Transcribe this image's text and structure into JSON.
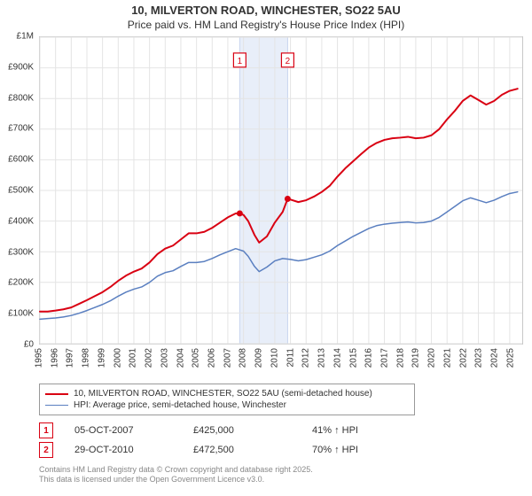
{
  "title_line1": "10, MILVERTON ROAD, WINCHESTER, SO22 5AU",
  "title_line2": "Price paid vs. HM Land Registry's House Price Index (HPI)",
  "chart": {
    "type": "line",
    "background_color": "#ffffff",
    "plot_border_color": "#c8c8c8",
    "grid_color": "#e4e4e4",
    "band_fill": "#e8eef9",
    "band_stroke": "#c8d4ee",
    "band_start_year": 2007.76,
    "band_end_year": 2010.82,
    "xlim": [
      1995,
      2025.8
    ],
    "ylim": [
      0,
      1000000
    ],
    "x_ticks": [
      1995,
      1996,
      1997,
      1998,
      1999,
      2000,
      2001,
      2002,
      2003,
      2004,
      2005,
      2006,
      2007,
      2008,
      2009,
      2010,
      2011,
      2012,
      2013,
      2014,
      2015,
      2016,
      2017,
      2018,
      2019,
      2020,
      2021,
      2022,
      2023,
      2024,
      2025
    ],
    "y_ticks": [
      0,
      100000,
      200000,
      300000,
      400000,
      500000,
      600000,
      700000,
      800000,
      900000,
      1000000
    ],
    "y_tick_labels": [
      "£0",
      "£100K",
      "£200K",
      "£300K",
      "£400K",
      "£500K",
      "£600K",
      "£700K",
      "£800K",
      "£900K",
      "£1M"
    ],
    "tick_font_size": 10,
    "series": [
      {
        "name": "10, MILVERTON ROAD, WINCHESTER, SO22 5AU (semi-detached house)",
        "color": "#d90012",
        "line_width": 2,
        "points": [
          [
            1995.0,
            105000
          ],
          [
            1995.5,
            105000
          ],
          [
            1996.0,
            108000
          ],
          [
            1996.5,
            112000
          ],
          [
            1997.0,
            118000
          ],
          [
            1997.5,
            130000
          ],
          [
            1998.0,
            142000
          ],
          [
            1998.5,
            155000
          ],
          [
            1999.0,
            168000
          ],
          [
            1999.5,
            185000
          ],
          [
            2000.0,
            205000
          ],
          [
            2000.5,
            222000
          ],
          [
            2001.0,
            235000
          ],
          [
            2001.5,
            245000
          ],
          [
            2002.0,
            265000
          ],
          [
            2002.5,
            292000
          ],
          [
            2003.0,
            310000
          ],
          [
            2003.5,
            320000
          ],
          [
            2004.0,
            340000
          ],
          [
            2004.5,
            360000
          ],
          [
            2005.0,
            360000
          ],
          [
            2005.5,
            365000
          ],
          [
            2006.0,
            378000
          ],
          [
            2006.5,
            395000
          ],
          [
            2007.0,
            412000
          ],
          [
            2007.5,
            425000
          ],
          [
            2007.76,
            425000
          ],
          [
            2008.0,
            420000
          ],
          [
            2008.3,
            400000
          ],
          [
            2008.7,
            355000
          ],
          [
            2009.0,
            330000
          ],
          [
            2009.5,
            350000
          ],
          [
            2010.0,
            395000
          ],
          [
            2010.5,
            430000
          ],
          [
            2010.82,
            472500
          ],
          [
            2011.0,
            470000
          ],
          [
            2011.5,
            462000
          ],
          [
            2012.0,
            468000
          ],
          [
            2012.5,
            480000
          ],
          [
            2013.0,
            495000
          ],
          [
            2013.5,
            515000
          ],
          [
            2014.0,
            545000
          ],
          [
            2014.5,
            572000
          ],
          [
            2015.0,
            595000
          ],
          [
            2015.5,
            618000
          ],
          [
            2016.0,
            640000
          ],
          [
            2016.5,
            655000
          ],
          [
            2017.0,
            665000
          ],
          [
            2017.5,
            670000
          ],
          [
            2018.0,
            672000
          ],
          [
            2018.5,
            675000
          ],
          [
            2019.0,
            670000
          ],
          [
            2019.5,
            672000
          ],
          [
            2020.0,
            680000
          ],
          [
            2020.5,
            700000
          ],
          [
            2021.0,
            732000
          ],
          [
            2021.5,
            760000
          ],
          [
            2022.0,
            792000
          ],
          [
            2022.5,
            810000
          ],
          [
            2023.0,
            795000
          ],
          [
            2023.5,
            780000
          ],
          [
            2024.0,
            792000
          ],
          [
            2024.5,
            812000
          ],
          [
            2025.0,
            825000
          ],
          [
            2025.5,
            832000
          ]
        ]
      },
      {
        "name": "HPI: Average price, semi-detached house, Winchester",
        "color": "#5a7fc0",
        "line_width": 1.5,
        "points": [
          [
            1995.0,
            80000
          ],
          [
            1995.5,
            82000
          ],
          [
            1996.0,
            84000
          ],
          [
            1996.5,
            87000
          ],
          [
            1997.0,
            92000
          ],
          [
            1997.5,
            99000
          ],
          [
            1998.0,
            108000
          ],
          [
            1998.5,
            118000
          ],
          [
            1999.0,
            128000
          ],
          [
            1999.5,
            140000
          ],
          [
            2000.0,
            155000
          ],
          [
            2000.5,
            168000
          ],
          [
            2001.0,
            178000
          ],
          [
            2001.5,
            185000
          ],
          [
            2002.0,
            200000
          ],
          [
            2002.5,
            220000
          ],
          [
            2003.0,
            232000
          ],
          [
            2003.5,
            238000
          ],
          [
            2004.0,
            252000
          ],
          [
            2004.5,
            265000
          ],
          [
            2005.0,
            265000
          ],
          [
            2005.5,
            268000
          ],
          [
            2006.0,
            278000
          ],
          [
            2006.5,
            290000
          ],
          [
            2007.0,
            300000
          ],
          [
            2007.5,
            310000
          ],
          [
            2008.0,
            302000
          ],
          [
            2008.3,
            285000
          ],
          [
            2008.7,
            252000
          ],
          [
            2009.0,
            235000
          ],
          [
            2009.5,
            250000
          ],
          [
            2010.0,
            270000
          ],
          [
            2010.5,
            278000
          ],
          [
            2011.0,
            275000
          ],
          [
            2011.5,
            270000
          ],
          [
            2012.0,
            274000
          ],
          [
            2012.5,
            282000
          ],
          [
            2013.0,
            290000
          ],
          [
            2013.5,
            302000
          ],
          [
            2014.0,
            320000
          ],
          [
            2014.5,
            335000
          ],
          [
            2015.0,
            350000
          ],
          [
            2015.5,
            363000
          ],
          [
            2016.0,
            376000
          ],
          [
            2016.5,
            385000
          ],
          [
            2017.0,
            390000
          ],
          [
            2017.5,
            393000
          ],
          [
            2018.0,
            395000
          ],
          [
            2018.5,
            397000
          ],
          [
            2019.0,
            394000
          ],
          [
            2019.5,
            395000
          ],
          [
            2020.0,
            400000
          ],
          [
            2020.5,
            412000
          ],
          [
            2021.0,
            430000
          ],
          [
            2021.5,
            448000
          ],
          [
            2022.0,
            466000
          ],
          [
            2022.5,
            476000
          ],
          [
            2023.0,
            468000
          ],
          [
            2023.5,
            460000
          ],
          [
            2024.0,
            468000
          ],
          [
            2024.5,
            480000
          ],
          [
            2025.0,
            490000
          ],
          [
            2025.5,
            495000
          ]
        ]
      }
    ],
    "sale_markers": [
      {
        "n": 1,
        "year": 2007.76,
        "value": 425000,
        "color": "#d90012"
      },
      {
        "n": 2,
        "year": 2010.82,
        "value": 472500,
        "color": "#d90012"
      }
    ]
  },
  "legend": {
    "border_color": "#999999",
    "rows": [
      {
        "color": "#d90012",
        "width": 2,
        "label": "10, MILVERTON ROAD, WINCHESTER, SO22 5AU (semi-detached house)"
      },
      {
        "color": "#5a7fc0",
        "width": 1.5,
        "label": "HPI: Average price, semi-detached house, Winchester"
      }
    ]
  },
  "sales": [
    {
      "n": "1",
      "date": "05-OCT-2007",
      "price": "£425,000",
      "vs": "41% ↑ HPI",
      "box_color": "#d90012"
    },
    {
      "n": "2",
      "date": "29-OCT-2010",
      "price": "£472,500",
      "vs": "70% ↑ HPI",
      "box_color": "#d90012"
    }
  ],
  "footer_line1": "Contains HM Land Registry data © Crown copyright and database right 2025.",
  "footer_line2": "This data is licensed under the Open Government Licence v3.0."
}
